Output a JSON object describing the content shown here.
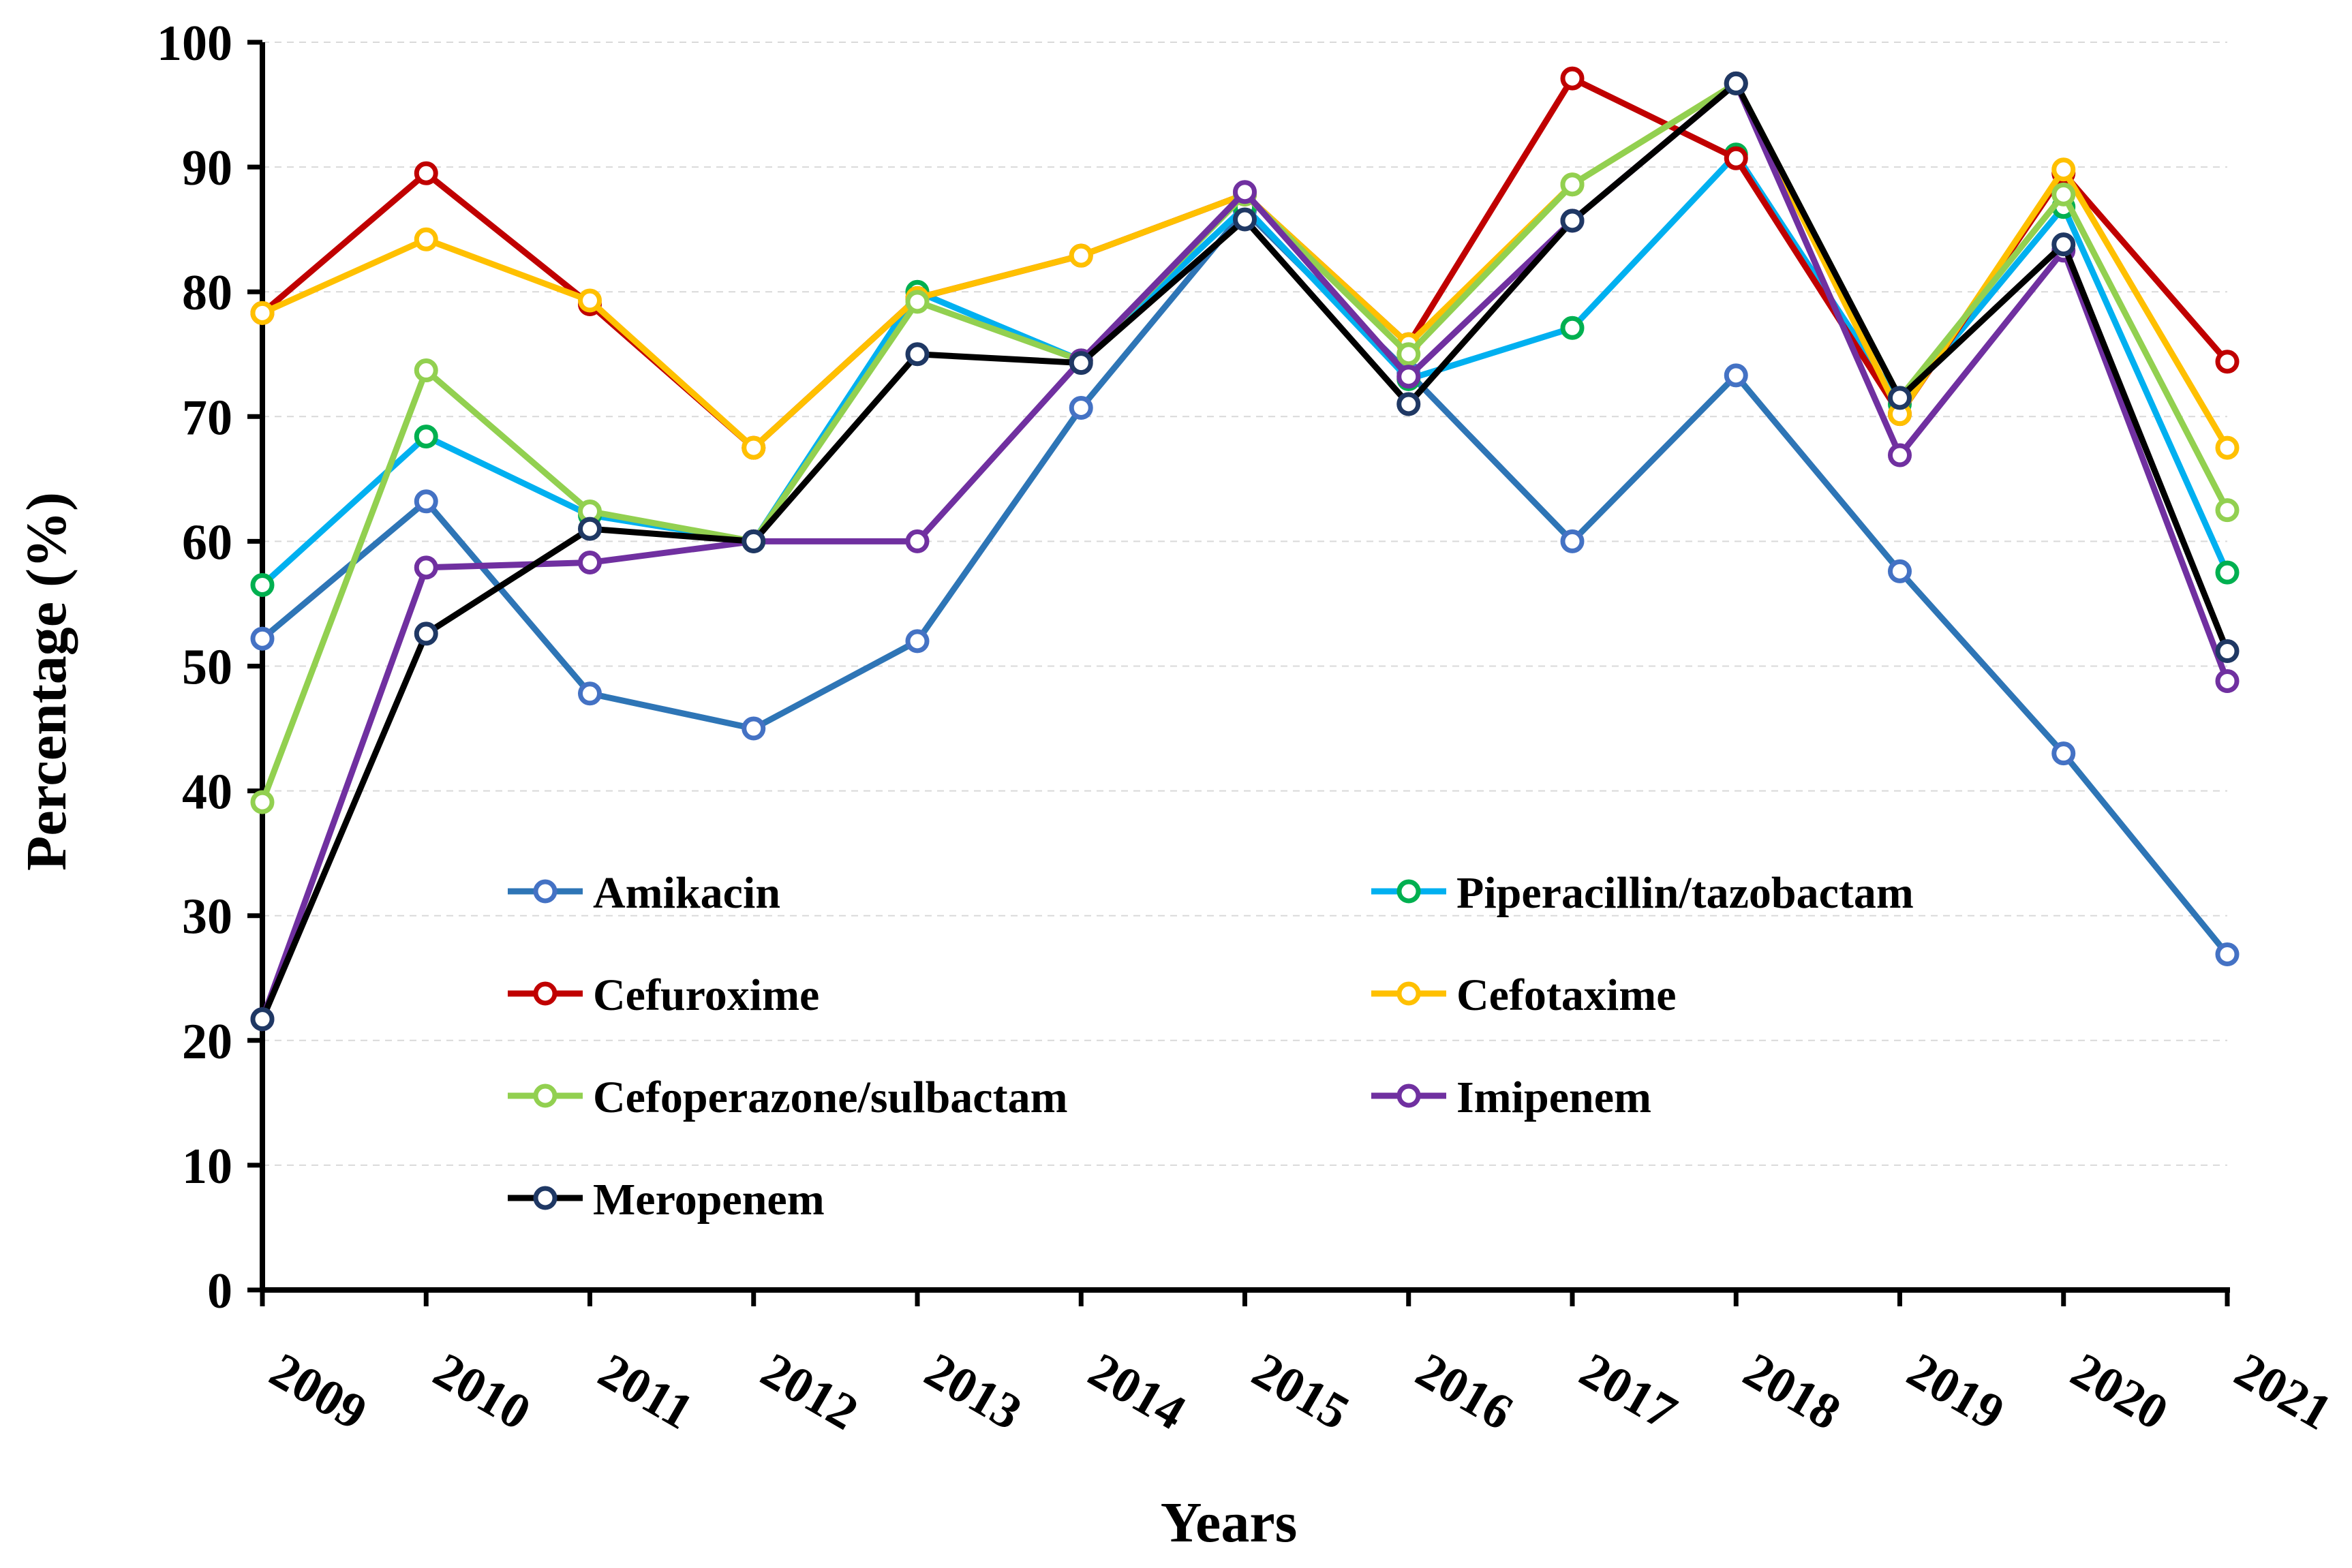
{
  "chart_data": {
    "type": "line",
    "title": "",
    "xlabel": "Years",
    "ylabel": "Percentage (%)",
    "ylim": [
      0,
      100
    ],
    "yticks": [
      0,
      10,
      20,
      30,
      40,
      50,
      60,
      70,
      80,
      90,
      100
    ],
    "grid": "horizontal dashed",
    "legend_position": "center-left, inside plot",
    "categories": [
      "2009",
      "2010",
      "2011",
      "2012",
      "2013",
      "2014",
      "2015",
      "2016",
      "2017",
      "2018",
      "2019",
      "2020",
      "2021"
    ],
    "series": [
      {
        "name": "Amikacin",
        "line_color": "#2E75B6",
        "marker_color": "#4472C4",
        "values": [
          52.2,
          63.2,
          47.8,
          45.0,
          52.0,
          70.7,
          86.5,
          73.5,
          60.0,
          73.3,
          57.6,
          43.0,
          26.9
        ]
      },
      {
        "name": "Piperacillin/tazobactam",
        "line_color": "#00B0F0",
        "marker_color": "#00B050",
        "values": [
          56.5,
          68.4,
          62.1,
          60.0,
          80.0,
          74.5,
          86.8,
          73.0,
          77.1,
          91.0,
          71.0,
          86.8,
          57.5
        ]
      },
      {
        "name": "Cefuroxime",
        "line_color": "#C00000",
        "marker_color": "#C00000",
        "values": [
          78.3,
          89.5,
          79.0,
          67.5,
          79.5,
          82.9,
          87.8,
          75.8,
          97.1,
          90.7,
          70.2,
          89.5,
          74.4
        ]
      },
      {
        "name": "Cefotaxime",
        "line_color": "#FFC000",
        "marker_color": "#FFC000",
        "values": [
          78.3,
          84.2,
          79.3,
          67.5,
          79.5,
          82.9,
          87.8,
          75.8,
          88.6,
          96.7,
          70.2,
          89.8,
          67.5
        ]
      },
      {
        "name": "Cefoperazone/sulbactam",
        "line_color": "#92D050",
        "marker_color": "#92D050",
        "values": [
          39.1,
          73.7,
          62.4,
          60.0,
          79.2,
          74.5,
          87.8,
          75.0,
          88.6,
          96.7,
          71.5,
          87.8,
          62.5
        ]
      },
      {
        "name": "Imipenem",
        "line_color": "#7030A0",
        "marker_color": "#7030A0",
        "values": [
          21.7,
          57.9,
          58.3,
          60.0,
          60.0,
          74.5,
          88.0,
          73.2,
          85.7,
          96.7,
          66.9,
          83.3,
          48.8
        ]
      },
      {
        "name": "Meropenem",
        "line_color": "#000000",
        "marker_color": "#1F3864",
        "values": [
          21.7,
          52.6,
          61.0,
          60.0,
          75.0,
          74.3,
          85.8,
          71.0,
          85.7,
          96.7,
          71.5,
          83.8,
          51.2
        ]
      }
    ]
  }
}
